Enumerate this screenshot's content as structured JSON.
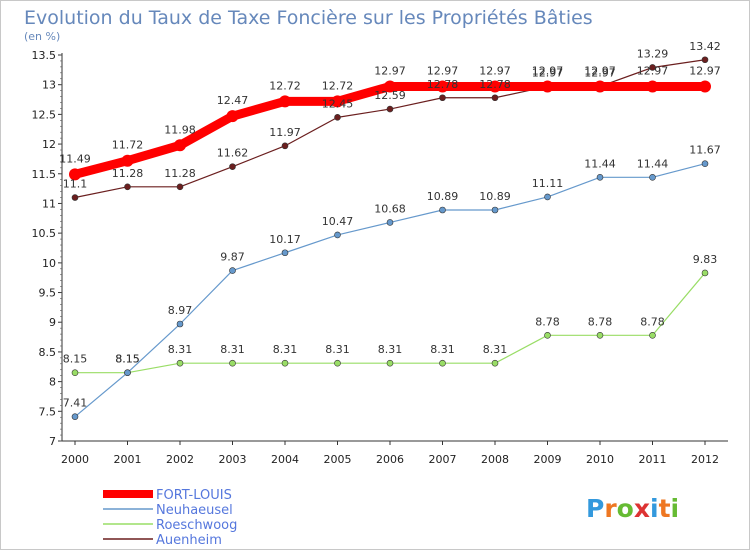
{
  "chart_data": {
    "type": "line",
    "title": "Evolution du Taux de Taxe Foncière sur les Propriétés Bâties",
    "subtitle": "(en %)",
    "x": [
      "2000",
      "2001",
      "2002",
      "2003",
      "2004",
      "2005",
      "2006",
      "2007",
      "2008",
      "2009",
      "2010",
      "2011",
      "2012"
    ],
    "ylim": [
      7,
      13.5
    ],
    "yticks": [
      "7",
      "7.5",
      "8",
      "8.5",
      "9",
      "9.5",
      "10",
      "10.5",
      "11",
      "11.5",
      "12",
      "12.5",
      "13",
      "13.5"
    ],
    "grid": false,
    "legend_position": "bottom-left",
    "series": [
      {
        "name": "FORT-LOUIS",
        "color": "#ff0000",
        "values": [
          11.49,
          11.72,
          11.98,
          12.47,
          12.72,
          12.72,
          12.97,
          12.97,
          12.97,
          12.97,
          12.97,
          12.97,
          12.97
        ]
      },
      {
        "name": "Neuhaeusel",
        "color": "#6699cc",
        "values": [
          7.41,
          8.15,
          8.97,
          9.87,
          10.17,
          10.47,
          10.68,
          10.89,
          10.89,
          11.11,
          11.44,
          11.44,
          11.67
        ]
      },
      {
        "name": "Roeschwoog",
        "color": "#99dd66",
        "values": [
          8.15,
          8.15,
          8.31,
          8.31,
          8.31,
          8.31,
          8.31,
          8.31,
          8.31,
          8.78,
          8.78,
          8.78,
          9.83
        ]
      },
      {
        "name": "Auenheim",
        "color": "#6b1f1f",
        "values": [
          11.1,
          11.28,
          11.28,
          11.62,
          11.97,
          12.45,
          12.59,
          12.78,
          12.78,
          12.97,
          12.97,
          13.29,
          13.42
        ]
      }
    ]
  },
  "brand": {
    "text": "Proxiti"
  }
}
